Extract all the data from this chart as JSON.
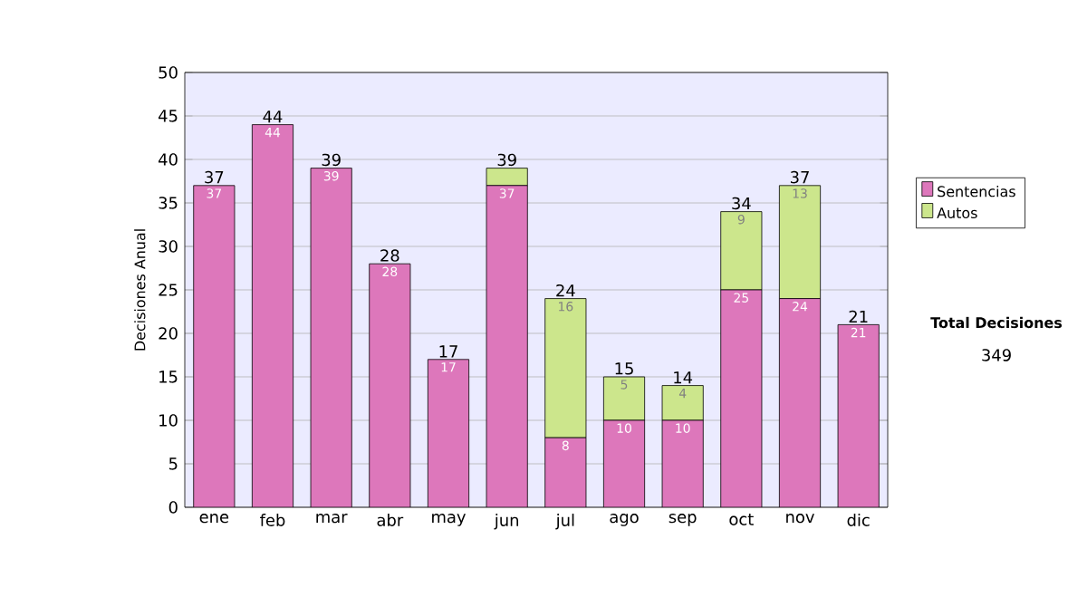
{
  "chart_data": {
    "type": "bar",
    "stacked": true,
    "ylabel": "Decisiones Anual",
    "categories": [
      "ene",
      "feb",
      "mar",
      "abr",
      "may",
      "jun",
      "jul",
      "ago",
      "sep",
      "oct",
      "nov",
      "dic"
    ],
    "series": [
      {
        "name": "Sentencias",
        "color": "#dd77bb",
        "values": [
          37,
          44,
          39,
          28,
          17,
          37,
          8,
          10,
          10,
          25,
          24,
          21
        ],
        "value_labels": [
          "37",
          "44",
          "39",
          "28",
          "17",
          "37",
          "8",
          "10",
          "10",
          "25",
          "24",
          "21"
        ]
      },
      {
        "name": "Autos",
        "color": "#cce68c",
        "values": [
          0,
          0,
          0,
          0,
          0,
          2,
          16,
          5,
          4,
          9,
          13,
          0
        ],
        "value_labels": [
          null,
          null,
          null,
          null,
          null,
          null,
          "16",
          "5",
          "4",
          "9",
          "13",
          null
        ]
      }
    ],
    "totals": [
      "37",
      "44",
      "39",
      "28",
      "17",
      "39",
      "24",
      "15",
      "14",
      "34",
      "37",
      "21"
    ],
    "ylim": [
      0,
      50
    ],
    "yticks": [
      0,
      5,
      10,
      15,
      20,
      25,
      30,
      35,
      40,
      45,
      50
    ],
    "grid": "y",
    "legend": "right",
    "annotations": [
      "Total Decisiones",
      "349"
    ]
  }
}
